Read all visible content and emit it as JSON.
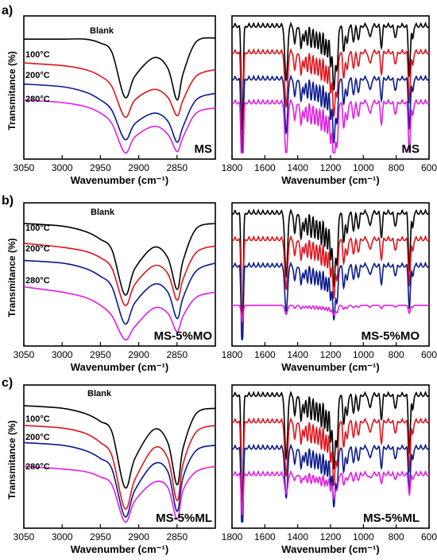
{
  "figure": {
    "panel_labels": [
      "a)",
      "b)",
      "c)"
    ],
    "ylabel": "Transmitance (%)",
    "xlabel_left": "Wavenumber (cm⁻¹)",
    "xlabel_right": "Wavenumber (cm⁻¹)"
  },
  "colors": {
    "Blank": "#000000",
    "100°C": "#e0141c",
    "200°C": "#0a1a8c",
    "280°C": "#e020e0"
  },
  "chart_data": [
    {
      "type": "line",
      "panel": "a",
      "region": "CH-stretch",
      "sample": "MS",
      "xlim": [
        3050,
        2800
      ],
      "x_reversed": true,
      "x_ticks": [
        3050,
        3000,
        2950,
        2900,
        2850
      ],
      "series": [
        {
          "name": "Blank",
          "offset": 0.14,
          "points": [
            [
              3050,
              0.14
            ],
            [
              3000,
              0.14
            ],
            [
              2970,
              0.14
            ],
            [
              2950,
              0.17
            ],
            [
              2935,
              0.24
            ],
            [
              2918,
              0.58
            ],
            [
              2905,
              0.42
            ],
            [
              2880,
              0.28
            ],
            [
              2862,
              0.36
            ],
            [
              2850,
              0.6
            ],
            [
              2842,
              0.4
            ],
            [
              2825,
              0.16
            ],
            [
              2800,
              0.13
            ]
          ]
        },
        {
          "name": "100°C",
          "offset": 0.32,
          "points": [
            [
              3050,
              0.32
            ],
            [
              3000,
              0.34
            ],
            [
              2970,
              0.37
            ],
            [
              2950,
              0.42
            ],
            [
              2935,
              0.5
            ],
            [
              2918,
              0.73
            ],
            [
              2905,
              0.6
            ],
            [
              2880,
              0.52
            ],
            [
              2862,
              0.58
            ],
            [
              2850,
              0.72
            ],
            [
              2842,
              0.6
            ],
            [
              2825,
              0.42
            ],
            [
              2800,
              0.37
            ]
          ]
        },
        {
          "name": "200°C",
          "offset": 0.48,
          "points": [
            [
              3050,
              0.48
            ],
            [
              3000,
              0.5
            ],
            [
              2970,
              0.54
            ],
            [
              2950,
              0.6
            ],
            [
              2935,
              0.68
            ],
            [
              2918,
              0.9
            ],
            [
              2905,
              0.78
            ],
            [
              2880,
              0.7
            ],
            [
              2862,
              0.76
            ],
            [
              2850,
              0.92
            ],
            [
              2842,
              0.8
            ],
            [
              2825,
              0.6
            ],
            [
              2800,
              0.55
            ]
          ]
        },
        {
          "name": "280°C",
          "offset": 0.6,
          "points": [
            [
              3050,
              0.6
            ],
            [
              3000,
              0.62
            ],
            [
              2970,
              0.65
            ],
            [
              2950,
              0.7
            ],
            [
              2935,
              0.78
            ],
            [
              2918,
              1.0
            ],
            [
              2905,
              0.88
            ],
            [
              2880,
              0.8
            ],
            [
              2862,
              0.86
            ],
            [
              2850,
              0.99
            ],
            [
              2842,
              0.88
            ],
            [
              2825,
              0.7
            ],
            [
              2800,
              0.66
            ]
          ]
        }
      ]
    },
    {
      "type": "line",
      "panel": "a",
      "region": "fingerprint",
      "sample": "MS",
      "xlim": [
        1800,
        600
      ],
      "x_reversed": true,
      "x_ticks": [
        1800,
        1600,
        1400,
        1200,
        1000,
        800,
        600
      ],
      "series": [
        {
          "name": "Blank",
          "offset": 0.02
        },
        {
          "name": "100°C",
          "offset": 0.22
        },
        {
          "name": "200°C",
          "offset": 0.42
        },
        {
          "name": "280°C",
          "offset": 0.6
        }
      ]
    },
    {
      "type": "line",
      "panel": "b",
      "region": "CH-stretch",
      "sample": "MS-5%MO",
      "xlim": [
        3050,
        2800
      ],
      "x_reversed": true,
      "x_ticks": [
        3050,
        3000,
        2950,
        2900,
        2850
      ],
      "series": [
        {
          "name": "Blank",
          "offset": 0.12,
          "points": [
            [
              3050,
              0.12
            ],
            [
              3000,
              0.14
            ],
            [
              2970,
              0.18
            ],
            [
              2950,
              0.24
            ],
            [
              2935,
              0.32
            ],
            [
              2918,
              0.66
            ],
            [
              2905,
              0.46
            ],
            [
              2880,
              0.3
            ],
            [
              2862,
              0.38
            ],
            [
              2850,
              0.62
            ],
            [
              2842,
              0.4
            ],
            [
              2825,
              0.16
            ],
            [
              2800,
              0.12
            ]
          ]
        },
        {
          "name": "100°C",
          "offset": 0.27,
          "points": [
            [
              3050,
              0.27
            ],
            [
              3000,
              0.3
            ],
            [
              2970,
              0.33
            ],
            [
              2950,
              0.38
            ],
            [
              2935,
              0.46
            ],
            [
              2918,
              0.74
            ],
            [
              2905,
              0.58
            ],
            [
              2880,
              0.44
            ],
            [
              2862,
              0.5
            ],
            [
              2850,
              0.7
            ],
            [
              2842,
              0.54
            ],
            [
              2825,
              0.34
            ],
            [
              2800,
              0.29
            ]
          ]
        },
        {
          "name": "200°C",
          "offset": 0.4,
          "points": [
            [
              3050,
              0.4
            ],
            [
              3000,
              0.42
            ],
            [
              2970,
              0.46
            ],
            [
              2950,
              0.52
            ],
            [
              2935,
              0.6
            ],
            [
              2918,
              0.88
            ],
            [
              2905,
              0.72
            ],
            [
              2880,
              0.58
            ],
            [
              2862,
              0.64
            ],
            [
              2850,
              0.84
            ],
            [
              2842,
              0.68
            ],
            [
              2825,
              0.48
            ],
            [
              2800,
              0.42
            ]
          ]
        },
        {
          "name": "280°C",
          "offset": 0.6,
          "points": [
            [
              3050,
              0.6
            ],
            [
              3000,
              0.64
            ],
            [
              2970,
              0.68
            ],
            [
              2950,
              0.74
            ],
            [
              2935,
              0.82
            ],
            [
              2918,
              1.0
            ],
            [
              2905,
              0.9
            ],
            [
              2880,
              0.76
            ],
            [
              2862,
              0.8
            ],
            [
              2850,
              0.94
            ],
            [
              2842,
              0.82
            ],
            [
              2825,
              0.68
            ],
            [
              2800,
              0.64
            ]
          ]
        }
      ]
    },
    {
      "type": "line",
      "panel": "b",
      "region": "fingerprint",
      "sample": "MS-5%MO",
      "xlim": [
        1800,
        600
      ],
      "x_reversed": true,
      "x_ticks": [
        1800,
        1600,
        1400,
        1200,
        1000,
        800,
        600
      ],
      "series": [
        {
          "name": "Blank",
          "offset": 0.02
        },
        {
          "name": "100°C",
          "offset": 0.22
        },
        {
          "name": "200°C",
          "offset": 0.42
        },
        {
          "name": "280°C",
          "offset": 0.74
        }
      ]
    },
    {
      "type": "line",
      "panel": "c",
      "region": "CH-stretch",
      "sample": "MS-5%ML",
      "xlim": [
        3050,
        2800
      ],
      "x_reversed": true,
      "x_ticks": [
        3050,
        3000,
        2950,
        2900,
        2850
      ],
      "series": [
        {
          "name": "Blank",
          "offset": 0.12,
          "points": [
            [
              3050,
              0.12
            ],
            [
              3000,
              0.14
            ],
            [
              2970,
              0.18
            ],
            [
              2950,
              0.24
            ],
            [
              2935,
              0.32
            ],
            [
              2918,
              0.74
            ],
            [
              2905,
              0.52
            ],
            [
              2880,
              0.3
            ],
            [
              2862,
              0.4
            ],
            [
              2850,
              0.72
            ],
            [
              2842,
              0.44
            ],
            [
              2825,
              0.18
            ],
            [
              2800,
              0.14
            ]
          ]
        },
        {
          "name": "100°C",
          "offset": 0.27,
          "points": [
            [
              3050,
              0.27
            ],
            [
              3000,
              0.29
            ],
            [
              2970,
              0.33
            ],
            [
              2950,
              0.4
            ],
            [
              2935,
              0.5
            ],
            [
              2918,
              0.9
            ],
            [
              2905,
              0.68
            ],
            [
              2880,
              0.44
            ],
            [
              2862,
              0.52
            ],
            [
              2850,
              0.84
            ],
            [
              2842,
              0.56
            ],
            [
              2825,
              0.32
            ],
            [
              2800,
              0.27
            ]
          ]
        },
        {
          "name": "200°C",
          "offset": 0.4,
          "points": [
            [
              3050,
              0.4
            ],
            [
              3000,
              0.42
            ],
            [
              2970,
              0.46
            ],
            [
              2950,
              0.52
            ],
            [
              2935,
              0.6
            ],
            [
              2918,
              0.96
            ],
            [
              2905,
              0.76
            ],
            [
              2880,
              0.56
            ],
            [
              2862,
              0.62
            ],
            [
              2850,
              0.92
            ],
            [
              2842,
              0.66
            ],
            [
              2825,
              0.46
            ],
            [
              2800,
              0.42
            ]
          ]
        },
        {
          "name": "280°C",
          "offset": 0.58,
          "points": [
            [
              3050,
              0.58
            ],
            [
              3000,
              0.6
            ],
            [
              2970,
              0.62
            ],
            [
              2950,
              0.66
            ],
            [
              2935,
              0.72
            ],
            [
              2918,
              1.0
            ],
            [
              2905,
              0.84
            ],
            [
              2880,
              0.7
            ],
            [
              2862,
              0.74
            ],
            [
              2850,
              0.98
            ],
            [
              2842,
              0.76
            ],
            [
              2825,
              0.62
            ],
            [
              2800,
              0.58
            ]
          ]
        }
      ]
    },
    {
      "type": "line",
      "panel": "c",
      "region": "fingerprint",
      "sample": "MS-5%ML",
      "xlim": [
        1800,
        600
      ],
      "x_reversed": true,
      "x_ticks": [
        1800,
        1600,
        1400,
        1200,
        1000,
        800,
        600
      ],
      "series": [
        {
          "name": "Blank",
          "offset": 0.02
        },
        {
          "name": "100°C",
          "offset": 0.22
        },
        {
          "name": "200°C",
          "offset": 0.42
        },
        {
          "name": "280°C",
          "offset": 0.62
        }
      ]
    }
  ]
}
